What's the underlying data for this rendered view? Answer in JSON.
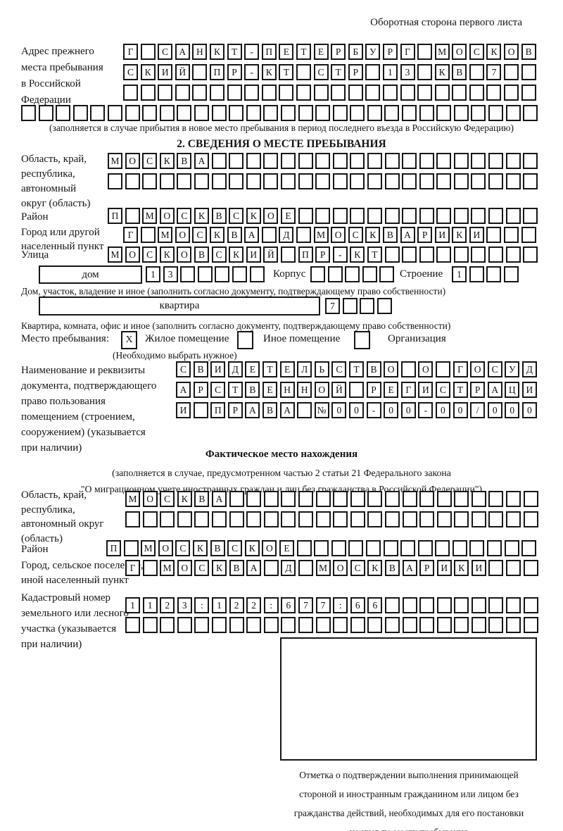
{
  "page": {
    "header": "Оборотная сторона первого листа"
  },
  "prev_address": {
    "label": "Адрес прежнего\nместа пребывания\nв Российской\nФедерации",
    "rows": [
      {
        "cells": 24,
        "value": "Г САНКТ-ПЕТЕРБУРГ МОСКОВ"
      },
      {
        "cells": 24,
        "value": "СКИЙ ПР-КТ СТР 13 КВ 7"
      },
      {
        "cells": 24,
        "value": ""
      },
      {
        "cells": 30,
        "value": ""
      }
    ],
    "note": "(заполняется в случае прибытия в новое место пребывания в период последнего въезда в Российскую Федерацию)"
  },
  "section2": {
    "title": "2. СВЕДЕНИЯ О МЕСТЕ ПРЕБЫВАНИЯ",
    "oblast": {
      "label": "Область, край,\nреспублика,\nавтономный\nокруг (область)",
      "rows": [
        {
          "cells": 25,
          "value": "МОСКВА"
        },
        {
          "cells": 25,
          "value": ""
        }
      ]
    },
    "raion": {
      "label": "Район",
      "row": {
        "cells": 25,
        "value": "П МОСКВСКОЕ"
      }
    },
    "gorod": {
      "label": "Город или другой\nнаселенный пункт",
      "row": {
        "cells": 24,
        "value": "Г МОСКВА Д МОСКВАРИКИ"
      }
    },
    "ulitsa": {
      "label": "Улица",
      "row": {
        "cells": 25,
        "value": "МОСКОВСКИЙ ПР-КТ"
      }
    },
    "dom": {
      "box_label": "дом",
      "row": {
        "cells": 7,
        "value": "13"
      },
      "korpus_label": "Корпус",
      "korpus_row": {
        "cells": 5,
        "value": ""
      },
      "stroenie_label": "Строение",
      "stroenie_row": {
        "cells": 4,
        "value": "1"
      },
      "note": "Дом, участок, владение и иное (заполнить согласно документу, подтверждающему право собственности)"
    },
    "kvartira": {
      "box_label": "квартира",
      "row": {
        "cells": 4,
        "value": "7"
      },
      "note": "Квартира, комната, офис и иное (заполнить согласно документу, подтверждающему право собственности)"
    },
    "mesto": {
      "label": "Место пребывания:",
      "options": [
        {
          "label": "Жилое помещение",
          "checked": "X"
        },
        {
          "label": "Иное помещение",
          "checked": ""
        },
        {
          "label": "Организация",
          "checked": ""
        }
      ],
      "note": "(Необходимо выбрать нужное)"
    },
    "document": {
      "label": "Наименование и реквизиты\nдокумента, подтверждающего\nправо пользования\nпомещением (строением,\nсооружением) (указывается\nпри наличии)",
      "rows": [
        {
          "cells": 21,
          "value": "СВИДЕТЕЛЬСТВО О ГОСУД"
        },
        {
          "cells": 21,
          "value": "АРСТВЕННОЙ РЕГИСТРАЦИ"
        },
        {
          "cells": 21,
          "value": "И ПРАВА №00-00-00/000"
        }
      ]
    }
  },
  "fakt": {
    "title": "Фактическое место нахождения",
    "note": "(заполняется в случае, предусмотренном частью 2 статьи 21 Федерального закона\n\"О миграционном учете иностранных граждан и лиц без гражданства в Российской Федерации\")",
    "oblast": {
      "label": "Область, край,\nреспублика,\nавтономный округ\n(область)",
      "rows": [
        {
          "cells": 24,
          "value": "МОСКВА"
        },
        {
          "cells": 24,
          "value": ""
        }
      ]
    },
    "raion": {
      "label": "Район",
      "row": {
        "cells": 25,
        "value": "П МОСКВСКОЕ"
      }
    },
    "gorod": {
      "label": "Город, сельское поселение,\nиной населенный пункт",
      "row": {
        "cells": 24,
        "value": "Г МОСКВА Д МОСКВАРИКИ"
      }
    },
    "kadastr": {
      "label": "Кадастровый номер\nземельного или лесного\nучастка (указывается\nпри наличии)",
      "rows": [
        {
          "cells": 24,
          "value": "1123:122:677:66"
        },
        {
          "cells": 24,
          "value": ""
        }
      ]
    },
    "stamp_note": "Отметка о подтверждении выполнения принимающей\nстороной и иностранным гражданином или лицом без\nгражданства действий, необходимых для его постановки\nна учет по месту пребывания"
  }
}
